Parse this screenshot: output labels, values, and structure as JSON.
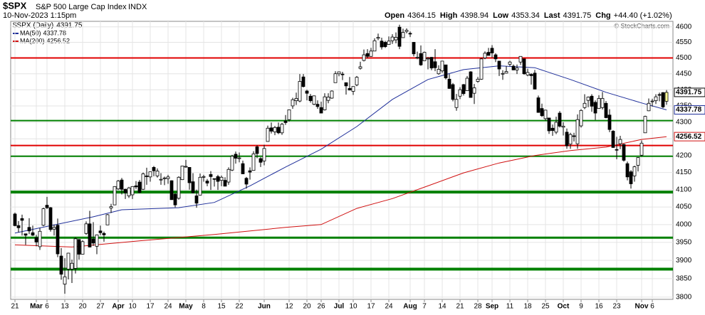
{
  "chart_data": {
    "type": "candlestick",
    "title": "$SPX",
    "subtitle": "S&P 500 Large Cap Index",
    "exchange": "INDX",
    "date": "10-Nov-2023 1:15pm",
    "header_labels": {
      "open": "Open",
      "high": "High",
      "low": "Low",
      "last": "Last",
      "chg": "Chg",
      "change": "+44.40 (+1.02%)"
    },
    "symbol_label": "$SPX (Daily)",
    "copyright": "© StockCharts.com",
    "log_scale": true,
    "grid": true,
    "up_color": "#ffffff",
    "down_color": "#000000",
    "last_color": "#ffff99",
    "ylim": [
      3794,
      4618
    ],
    "yticks": [
      3800,
      3850,
      3900,
      3950,
      4000,
      4050,
      4100,
      4150,
      4200,
      4250,
      4300,
      4350,
      4400,
      4450,
      4500,
      4550,
      4600
    ],
    "xlim": [
      -1,
      184
    ],
    "xticks": [
      {
        "value": 0,
        "label": "21"
      },
      {
        "value": 6,
        "label": "Mar"
      },
      {
        "value": 9,
        "label": "6"
      },
      {
        "value": 14,
        "label": "13"
      },
      {
        "value": 19,
        "label": "20"
      },
      {
        "value": 24,
        "label": "27"
      },
      {
        "value": 29,
        "label": "Apr"
      },
      {
        "value": 33,
        "label": "10"
      },
      {
        "value": 38,
        "label": "17"
      },
      {
        "value": 43,
        "label": "24"
      },
      {
        "value": 48,
        "label": "May"
      },
      {
        "value": 53,
        "label": "8"
      },
      {
        "value": 58,
        "label": "15"
      },
      {
        "value": 63,
        "label": "22"
      },
      {
        "value": 70,
        "label": "Jun"
      },
      {
        "value": 77,
        "label": "12"
      },
      {
        "value": 82,
        "label": "20"
      },
      {
        "value": 86,
        "label": "26"
      },
      {
        "value": 91,
        "label": "Jul"
      },
      {
        "value": 95,
        "label": "10"
      },
      {
        "value": 100,
        "label": "17"
      },
      {
        "value": 105,
        "label": "24"
      },
      {
        "value": 111,
        "label": "Aug"
      },
      {
        "value": 115,
        "label": "7"
      },
      {
        "value": 120,
        "label": "14"
      },
      {
        "value": 125,
        "label": "21"
      },
      {
        "value": 130,
        "label": "28"
      },
      {
        "value": 134,
        "label": "Sep"
      },
      {
        "value": 139,
        "label": "11"
      },
      {
        "value": 144,
        "label": "18"
      },
      {
        "value": 149,
        "label": "25"
      },
      {
        "value": 154,
        "label": "Oct"
      },
      {
        "value": 159,
        "label": "9"
      },
      {
        "value": 164,
        "label": "16"
      },
      {
        "value": 169,
        "label": "23"
      },
      {
        "value": 176,
        "label": "Nov"
      },
      {
        "value": 179,
        "label": "6"
      }
    ],
    "levels": [
      {
        "value": 4500,
        "color": "#e00000",
        "width": 2
      },
      {
        "value": 4305,
        "color": "#008000",
        "width": 2
      },
      {
        "value": 4230,
        "color": "#e00000",
        "width": 2
      },
      {
        "value": 4198,
        "color": "#008000",
        "width": 2
      },
      {
        "value": 4093,
        "color": "#008000",
        "width": 4
      },
      {
        "value": 3963,
        "color": "#008000",
        "width": 3
      },
      {
        "value": 3876,
        "color": "#008000",
        "width": 4
      }
    ],
    "candles": [
      [
        4030,
        4034,
        3995,
        3997
      ],
      [
        3997,
        4010,
        3978,
        3991
      ],
      [
        4017,
        4028,
        3969,
        4012
      ],
      [
        3974,
        3974,
        3943,
        3970
      ],
      [
        3992,
        4018,
        3973,
        3982
      ],
      [
        3977,
        3997,
        3968,
        3970
      ],
      [
        3963,
        3971,
        3939,
        3951
      ],
      [
        3938,
        3990,
        3929,
        3981
      ],
      [
        3998,
        4048,
        3995,
        4045
      ],
      [
        4055,
        4079,
        4044,
        4048
      ],
      [
        4048,
        4050,
        3980,
        3986
      ],
      [
        3987,
        4000,
        3969,
        3992
      ],
      [
        3998,
        4017,
        3909,
        3918
      ],
      [
        3912,
        3934,
        3847,
        3862
      ],
      [
        3835,
        3906,
        3809,
        3855
      ],
      [
        3876,
        3921,
        3848,
        3920
      ],
      [
        3876,
        3902,
        3838,
        3892
      ],
      [
        3878,
        3964,
        3864,
        3960
      ],
      [
        3958,
        3958,
        3902,
        3917
      ],
      [
        3917,
        3956,
        3916,
        3952
      ],
      [
        3975,
        4009,
        3971,
        4002
      ],
      [
        4002,
        4039,
        3936,
        3937
      ],
      [
        3959,
        4007,
        3940,
        3948
      ],
      [
        3939,
        3972,
        3917,
        3971
      ],
      [
        3982,
        3997,
        3970,
        3977
      ],
      [
        3975,
        3980,
        3952,
        3971
      ],
      [
        3999,
        4030,
        3999,
        4028
      ],
      [
        4047,
        4059,
        4033,
        4051
      ],
      [
        4056,
        4110,
        4056,
        4109
      ],
      [
        4102,
        4128,
        4099,
        4125
      ],
      [
        4128,
        4134,
        4086,
        4101
      ],
      [
        4101,
        4103,
        4073,
        4091
      ],
      [
        4082,
        4108,
        4076,
        4105
      ],
      [
        4085,
        4110,
        4073,
        4109
      ],
      [
        4111,
        4125,
        4102,
        4108
      ],
      [
        4122,
        4128,
        4090,
        4092
      ],
      [
        4101,
        4150,
        4099,
        4146
      ],
      [
        4140,
        4164,
        4114,
        4138
      ],
      [
        4137,
        4152,
        4123,
        4152
      ],
      [
        4165,
        4169,
        4139,
        4155
      ],
      [
        4140,
        4162,
        4135,
        4154
      ],
      [
        4130,
        4148,
        4114,
        4130
      ],
      [
        4132,
        4138,
        4113,
        4134
      ],
      [
        4132,
        4143,
        4117,
        4137
      ],
      [
        4126,
        4127,
        4071,
        4071
      ],
      [
        4087,
        4089,
        4049,
        4056
      ],
      [
        4075,
        4139,
        4071,
        4136
      ],
      [
        4129,
        4170,
        4128,
        4169
      ],
      [
        4166,
        4187,
        4164,
        4168
      ],
      [
        4165,
        4165,
        4100,
        4120
      ],
      [
        4123,
        4148,
        4089,
        4091
      ],
      [
        4082,
        4100,
        4048,
        4061
      ],
      [
        4084,
        4147,
        4084,
        4136
      ],
      [
        4136,
        4143,
        4123,
        4138
      ],
      [
        4125,
        4131,
        4110,
        4119
      ],
      [
        4144,
        4154,
        4099,
        4138
      ],
      [
        4132,
        4132,
        4109,
        4131
      ],
      [
        4138,
        4143,
        4099,
        4124
      ],
      [
        4127,
        4141,
        4110,
        4136
      ],
      [
        4127,
        4136,
        4110,
        4110
      ],
      [
        4122,
        4165,
        4114,
        4159
      ],
      [
        4157,
        4202,
        4154,
        4198
      ],
      [
        4204,
        4212,
        4176,
        4192
      ],
      [
        4191,
        4209,
        4180,
        4193
      ],
      [
        4176,
        4185,
        4146,
        4146
      ],
      [
        4133,
        4137,
        4103,
        4116
      ],
      [
        4155,
        4165,
        4129,
        4151
      ],
      [
        4156,
        4213,
        4155,
        4205
      ],
      [
        4226,
        4231,
        4192,
        4206
      ],
      [
        4191,
        4195,
        4166,
        4180
      ],
      [
        4184,
        4232,
        4171,
        4221
      ],
      [
        4242,
        4290,
        4242,
        4282
      ],
      [
        4283,
        4299,
        4266,
        4273
      ],
      [
        4271,
        4289,
        4261,
        4284
      ],
      [
        4285,
        4299,
        4264,
        4268
      ],
      [
        4268,
        4298,
        4262,
        4294
      ],
      [
        4304,
        4322,
        4292,
        4299
      ],
      [
        4308,
        4339,
        4302,
        4338
      ],
      [
        4350,
        4375,
        4341,
        4369
      ],
      [
        4366,
        4391,
        4353,
        4373
      ],
      [
        4365,
        4449,
        4361,
        4426
      ],
      [
        4440,
        4449,
        4407,
        4410
      ],
      [
        4396,
        4400,
        4367,
        4389
      ],
      [
        4380,
        4387,
        4360,
        4366
      ],
      [
        4355,
        4382,
        4352,
        4381
      ],
      [
        4355,
        4367,
        4341,
        4348
      ],
      [
        4345,
        4363,
        4328,
        4328
      ],
      [
        4338,
        4389,
        4336,
        4378
      ],
      [
        4367,
        4389,
        4358,
        4377
      ],
      [
        4374,
        4398,
        4372,
        4396
      ],
      [
        4422,
        4458,
        4422,
        4450
      ],
      [
        4450,
        4457,
        4442,
        4456
      ],
      [
        4449,
        4456,
        4430,
        4447
      ],
      [
        4422,
        4423,
        4385,
        4412
      ],
      [
        4404,
        4440,
        4398,
        4399
      ],
      [
        4395,
        4410,
        4384,
        4410
      ],
      [
        4415,
        4443,
        4411,
        4439
      ],
      [
        4467,
        4488,
        4463,
        4472
      ],
      [
        4492,
        4527,
        4489,
        4510
      ],
      [
        4514,
        4528,
        4499,
        4505
      ],
      [
        4505,
        4532,
        4504,
        4522
      ],
      [
        4522,
        4563,
        4522,
        4555
      ],
      [
        4563,
        4578,
        4557,
        4566
      ],
      [
        4554,
        4565,
        4527,
        4535
      ],
      [
        4550,
        4555,
        4532,
        4536
      ],
      [
        4543,
        4569,
        4542,
        4554
      ],
      [
        4555,
        4576,
        4545,
        4567
      ],
      [
        4558,
        4582,
        4547,
        4566
      ],
      [
        4599,
        4607,
        4528,
        4537
      ],
      [
        4565,
        4594,
        4565,
        4582
      ],
      [
        4585,
        4595,
        4579,
        4589
      ],
      [
        4579,
        4585,
        4567,
        4577
      ],
      [
        4550,
        4551,
        4505,
        4513
      ],
      [
        4500,
        4520,
        4496,
        4502
      ],
      [
        4514,
        4540,
        4475,
        4478
      ],
      [
        4491,
        4520,
        4491,
        4518
      ],
      [
        4498,
        4503,
        4464,
        4499
      ],
      [
        4502,
        4503,
        4461,
        4468
      ],
      [
        4488,
        4528,
        4458,
        4469
      ],
      [
        4450,
        4477,
        4447,
        4464
      ],
      [
        4459,
        4490,
        4453,
        4490
      ],
      [
        4478,
        4478,
        4432,
        4437
      ],
      [
        4433,
        4449,
        4403,
        4404
      ],
      [
        4416,
        4421,
        4364,
        4370
      ],
      [
        4345,
        4387,
        4335,
        4370
      ],
      [
        4380,
        4408,
        4371,
        4400
      ],
      [
        4416,
        4418,
        4382,
        4388
      ],
      [
        4397,
        4443,
        4396,
        4436
      ],
      [
        4456,
        4458,
        4375,
        4376
      ],
      [
        4389,
        4418,
        4356,
        4406
      ],
      [
        4426,
        4440,
        4422,
        4433
      ],
      [
        4433,
        4500,
        4431,
        4497
      ],
      [
        4500,
        4521,
        4496,
        4515
      ],
      [
        4518,
        4532,
        4508,
        4508
      ],
      [
        4531,
        4541,
        4501,
        4516
      ],
      [
        4510,
        4515,
        4487,
        4497
      ],
      [
        4490,
        4490,
        4443,
        4465
      ],
      [
        4451,
        4461,
        4431,
        4451
      ],
      [
        4452,
        4474,
        4451,
        4457
      ],
      [
        4480,
        4491,
        4474,
        4487
      ],
      [
        4474,
        4479,
        4461,
        4462
      ],
      [
        4462,
        4479,
        4449,
        4468
      ],
      [
        4487,
        4505,
        4478,
        4505
      ],
      [
        4497,
        4498,
        4447,
        4450
      ],
      [
        4446,
        4466,
        4442,
        4454
      ],
      [
        4448,
        4452,
        4416,
        4444
      ],
      [
        4452,
        4462,
        4402,
        4402
      ],
      [
        4375,
        4382,
        4329,
        4330
      ],
      [
        4342,
        4357,
        4316,
        4320
      ],
      [
        4311,
        4338,
        4305,
        4337
      ],
      [
        4313,
        4313,
        4265,
        4274
      ],
      [
        4282,
        4293,
        4259,
        4275
      ],
      [
        4270,
        4317,
        4264,
        4300
      ],
      [
        4328,
        4334,
        4284,
        4288
      ],
      [
        4285,
        4300,
        4260,
        4288
      ],
      [
        4270,
        4281,
        4220,
        4229
      ],
      [
        4234,
        4268,
        4220,
        4263
      ],
      [
        4259,
        4268,
        4242,
        4258
      ],
      [
        4235,
        4324,
        4220,
        4308
      ],
      [
        4289,
        4340,
        4284,
        4336
      ],
      [
        4345,
        4386,
        4340,
        4358
      ],
      [
        4367,
        4379,
        4346,
        4377
      ],
      [
        4380,
        4386,
        4332,
        4349
      ],
      [
        4361,
        4367,
        4307,
        4328
      ],
      [
        4342,
        4383,
        4342,
        4373
      ],
      [
        4345,
        4393,
        4339,
        4373
      ],
      [
        4358,
        4365,
        4312,
        4314
      ],
      [
        4322,
        4340,
        4270,
        4278
      ],
      [
        4273,
        4276,
        4223,
        4224
      ],
      [
        4218,
        4256,
        4189,
        4217
      ],
      [
        4235,
        4259,
        4219,
        4248
      ],
      [
        4233,
        4235,
        4182,
        4186
      ],
      [
        4176,
        4182,
        4127,
        4137
      ],
      [
        4152,
        4157,
        4103,
        4117
      ],
      [
        4140,
        4170,
        4123,
        4167
      ],
      [
        4171,
        4195,
        4153,
        4194
      ],
      [
        4201,
        4245,
        4197,
        4237
      ],
      [
        4268,
        4320,
        4268,
        4318
      ],
      [
        4335,
        4373,
        4334,
        4358
      ],
      [
        4364,
        4372,
        4348,
        4365
      ],
      [
        4366,
        4386,
        4356,
        4378
      ],
      [
        4385,
        4391,
        4364,
        4383
      ],
      [
        4391,
        4393,
        4343,
        4347
      ],
      [
        4364.15,
        4398.94,
        4353.34,
        4391.75
      ]
    ],
    "series": [
      {
        "name": "MA(50)",
        "color": "#1f2f9a",
        "x": [
          0,
          22,
          30,
          46,
          56,
          66,
          76,
          86,
          96,
          106,
          116,
          126,
          136,
          146,
          156,
          166,
          176,
          183
        ],
        "values": [
          3976,
          4022,
          4042,
          4048,
          4063,
          4111,
          4166,
          4219,
          4287,
          4370,
          4432,
          4463,
          4475,
          4469,
          4432,
          4392,
          4359,
          4337.78
        ]
      },
      {
        "name": "MA(200)",
        "color": "#d01010",
        "x": [
          0,
          16,
          36,
          56,
          76,
          86,
          96,
          106,
          116,
          126,
          136,
          146,
          156,
          166,
          176,
          183
        ],
        "values": [
          3943,
          3937,
          3955,
          3972,
          3992,
          4000,
          4046,
          4074,
          4111,
          4149,
          4178,
          4200,
          4215,
          4225,
          4248,
          4256.52
        ]
      }
    ]
  }
}
